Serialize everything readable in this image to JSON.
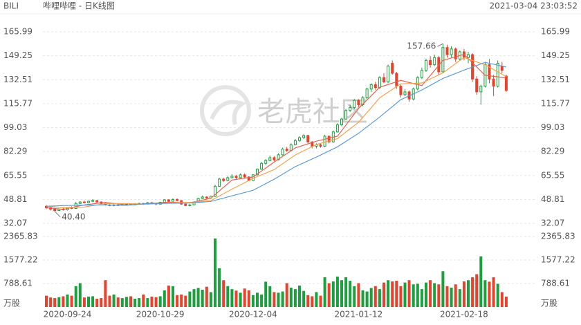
{
  "chart_data": {
    "type": "candlestick",
    "symbol": "BILI",
    "title": "哔哩哔哩 - 日K线图",
    "timestamp": "2021-03-04 23:03:52",
    "watermark": "老虎社区",
    "up_color": "#1aa03c",
    "down_color": "#e8412c",
    "categories": [
      null,
      null,
      null,
      null,
      null,
      "2020-09-24",
      null,
      null,
      null,
      null,
      null,
      null,
      null,
      null,
      null,
      null,
      null,
      null,
      null,
      null,
      null,
      null,
      null,
      null,
      null,
      null,
      null,
      "2020-10-29",
      null,
      null,
      null,
      null,
      null,
      null,
      null,
      null,
      null,
      null,
      null,
      null,
      null,
      null,
      null,
      null,
      null,
      null,
      null,
      null,
      null,
      "2020-12-04",
      null,
      null,
      null,
      null,
      null,
      null,
      null,
      null,
      null,
      null,
      null,
      null,
      null,
      null,
      null,
      null,
      null,
      null,
      null,
      null,
      null,
      null,
      null,
      null,
      "2021-01-12",
      null,
      null,
      null,
      null,
      null,
      null,
      null,
      null,
      null,
      null,
      null,
      null,
      null,
      null,
      null,
      null,
      null,
      null,
      null,
      null,
      null,
      null,
      null,
      null,
      "2021-02-18",
      null,
      null,
      null,
      null,
      null,
      null,
      null,
      null,
      null,
      null
    ],
    "open": [
      44,
      43,
      42,
      41,
      42,
      41.5,
      43,
      42.5,
      46,
      47,
      46.5,
      47.5,
      48,
      47,
      46,
      45,
      44.5,
      45,
      44.8,
      45.2,
      45.5,
      45,
      45.8,
      46,
      45.5,
      46.5,
      46,
      45.5,
      46.8,
      48.5,
      47.5,
      48.8,
      48,
      45.5,
      44.5,
      45,
      47,
      49.5,
      50.5,
      49.8,
      51,
      58,
      63,
      62,
      64,
      65,
      64,
      66,
      64.5,
      62,
      66,
      70,
      74,
      76,
      78,
      76.5,
      80,
      84,
      83,
      87,
      90,
      92,
      93.5,
      89,
      86,
      87,
      86,
      93,
      89,
      96,
      101,
      105,
      111,
      113,
      118,
      115,
      120,
      126,
      129,
      127,
      134,
      131,
      144,
      137,
      128,
      122,
      124,
      119,
      126,
      134,
      139,
      146,
      143,
      148,
      138,
      155,
      150,
      154,
      147,
      152,
      148,
      150,
      133,
      124,
      128,
      143,
      133,
      128,
      142,
      135
    ],
    "high": [
      45,
      43.5,
      42.5,
      42.5,
      43,
      43.5,
      44,
      47,
      47.5,
      48,
      48,
      49,
      48.5,
      47.5,
      46.5,
      45.5,
      45.5,
      45.5,
      45.6,
      46,
      46,
      46.2,
      46.5,
      46.4,
      47,
      47,
      46.3,
      47.2,
      49,
      49,
      49.5,
      49.5,
      48.3,
      46,
      45.5,
      47.5,
      50,
      51.5,
      51,
      51.5,
      59,
      64,
      64,
      65,
      66.5,
      66,
      67,
      67,
      65,
      66.5,
      70.5,
      75,
      77,
      79.5,
      79,
      81,
      85,
      85.5,
      88,
      91,
      93,
      94.5,
      94,
      89.5,
      88,
      88,
      94,
      93.5,
      97,
      102,
      106,
      112,
      115,
      119,
      119,
      121,
      127,
      130,
      131,
      135,
      137,
      143,
      146,
      138,
      129,
      126,
      125,
      127,
      135,
      141,
      147,
      149,
      150,
      149,
      157.66,
      157,
      156,
      155,
      153,
      154,
      152,
      151,
      135,
      129,
      145,
      147,
      136,
      146,
      145,
      136
    ],
    "low": [
      42,
      41,
      40.4,
      40.8,
      41,
      41,
      42,
      42.5,
      45.5,
      46,
      46,
      47,
      46.5,
      45.5,
      44.5,
      44,
      44,
      44.3,
      44.5,
      44.8,
      44.6,
      44.8,
      45.3,
      45,
      45.3,
      45.6,
      44.8,
      45.3,
      46.5,
      47,
      47.3,
      47.5,
      45,
      44,
      44,
      44.8,
      46.8,
      49,
      49.3,
      49.5,
      50.5,
      57.5,
      61,
      61.5,
      63.5,
      63,
      63.5,
      63.5,
      61.5,
      61.8,
      65.5,
      69.5,
      73,
      75.5,
      75.5,
      76,
      79.5,
      82,
      82.5,
      86.5,
      89,
      91,
      88,
      84.5,
      84.5,
      85,
      85.5,
      88,
      88.5,
      95.5,
      100,
      104.5,
      110,
      112,
      113.5,
      114,
      119,
      124,
      125.5,
      126,
      130,
      130,
      136,
      126,
      120,
      121,
      117,
      118,
      125,
      133,
      138,
      141,
      142,
      136,
      137,
      148,
      148,
      145,
      146,
      146,
      144,
      131,
      122,
      115,
      127,
      130,
      121,
      127,
      137,
      124
    ],
    "close": [
      43,
      42,
      41,
      42,
      41.5,
      43,
      42.5,
      46,
      47,
      46.5,
      47.5,
      48,
      47,
      46,
      45,
      44.5,
      45,
      44.8,
      45.2,
      45.5,
      45,
      45.8,
      46,
      45.5,
      46.5,
      46,
      45.5,
      46.8,
      48.5,
      47.5,
      48.8,
      48,
      45.5,
      44.5,
      45,
      47,
      49.5,
      50.5,
      49.8,
      51,
      58,
      63,
      62,
      64,
      65,
      64,
      66,
      64.5,
      62,
      66,
      70,
      74,
      76,
      78,
      76.5,
      80,
      84,
      83,
      87,
      90,
      92,
      93.5,
      89,
      86,
      87,
      86,
      93,
      89,
      96,
      101,
      105,
      111,
      113,
      118,
      115,
      120,
      126,
      129,
      127,
      134,
      131,
      142,
      137,
      128,
      122,
      124,
      119,
      126,
      134,
      139,
      146,
      143,
      148,
      138,
      155,
      150,
      154,
      147,
      152,
      148,
      150,
      133,
      124,
      128,
      143,
      133,
      128,
      144,
      139,
      125
    ],
    "ylim": [
      32.07,
      165.99
    ],
    "yticks": [
      32.07,
      48.81,
      65.55,
      82.29,
      99.03,
      115.77,
      132.51,
      149.25,
      165.99
    ],
    "grid": true,
    "lines": [
      {
        "color": "#e8604c",
        "x": [
          0,
          4,
          9,
          14,
          19,
          24,
          29,
          34,
          39,
          44,
          49,
          54,
          59,
          64,
          69,
          74,
          79,
          84,
          89,
          94,
          99,
          104,
          109
        ],
        "values": [
          43,
          41.9,
          45,
          46.7,
          45,
          45.8,
          46.9,
          46.4,
          49.6,
          62.4,
          64.5,
          74.9,
          84.8,
          89.5,
          93,
          112.4,
          127.2,
          132,
          128.4,
          146,
          150.2,
          135.6,
          133.8
        ]
      },
      {
        "color": "#f5a24b",
        "x": [
          0,
          4,
          9,
          14,
          19,
          24,
          29,
          34,
          39,
          44,
          49,
          54,
          59,
          64,
          69,
          74,
          79,
          84,
          89,
          94,
          99,
          104,
          109
        ],
        "values": [
          44,
          43,
          43.5,
          45.9,
          45.9,
          45.4,
          46.4,
          46.7,
          48,
          56,
          63.5,
          69.7,
          79.9,
          87.2,
          91.3,
          102.7,
          119.8,
          129.6,
          130.2,
          137.2,
          148.1,
          142.9,
          134.7
        ]
      },
      {
        "color": "#5b9bd5",
        "x": [
          0,
          4,
          9,
          14,
          19,
          24,
          29,
          34,
          39,
          44,
          49,
          54,
          59,
          64,
          69,
          74,
          79,
          84,
          89,
          94,
          99,
          104,
          109
        ],
        "values": [
          44,
          44.5,
          44.8,
          45,
          44.7,
          45.9,
          46.1,
          46.3,
          47.4,
          51.3,
          55.2,
          62.9,
          71.7,
          78.4,
          85.6,
          95,
          106.4,
          118.5,
          125.3,
          133.4,
          139.2,
          144.6,
          141.4
        ]
      }
    ],
    "annotations": [
      {
        "label": "157.66",
        "index": 94,
        "value": 157.66
      },
      {
        "label": "40.40",
        "index": 2,
        "value": 40.4
      }
    ],
    "volume": {
      "unit": "万股",
      "ylim": [
        0,
        2365.83
      ],
      "yticks": [
        788.61,
        1577.22,
        2365.83
      ],
      "values": [
        380,
        320,
        300,
        330,
        360,
        420,
        380,
        700,
        800,
        320,
        350,
        360,
        280,
        300,
        900,
        380,
        420,
        320,
        300,
        340,
        360,
        280,
        300,
        420,
        300,
        350,
        330,
        360,
        560,
        720,
        700,
        400,
        420,
        380,
        520,
        600,
        640,
        580,
        680,
        500,
        2300,
        1300,
        900,
        700,
        600,
        550,
        480,
        620,
        560,
        400,
        480,
        420,
        850,
        700,
        500,
        480,
        520,
        800,
        650,
        600,
        720,
        540,
        400,
        360,
        500,
        380,
        1000,
        800,
        860,
        1020,
        900,
        1000,
        880,
        700,
        800,
        560,
        520,
        640,
        700,
        600,
        820,
        900,
        860,
        880,
        700,
        820,
        900,
        760,
        780,
        600,
        820,
        900,
        800,
        760,
        1200,
        700,
        650,
        760,
        600,
        860,
        900,
        1000,
        1100,
        1700,
        900,
        850,
        1000,
        780,
        500,
        350
      ]
    }
  }
}
